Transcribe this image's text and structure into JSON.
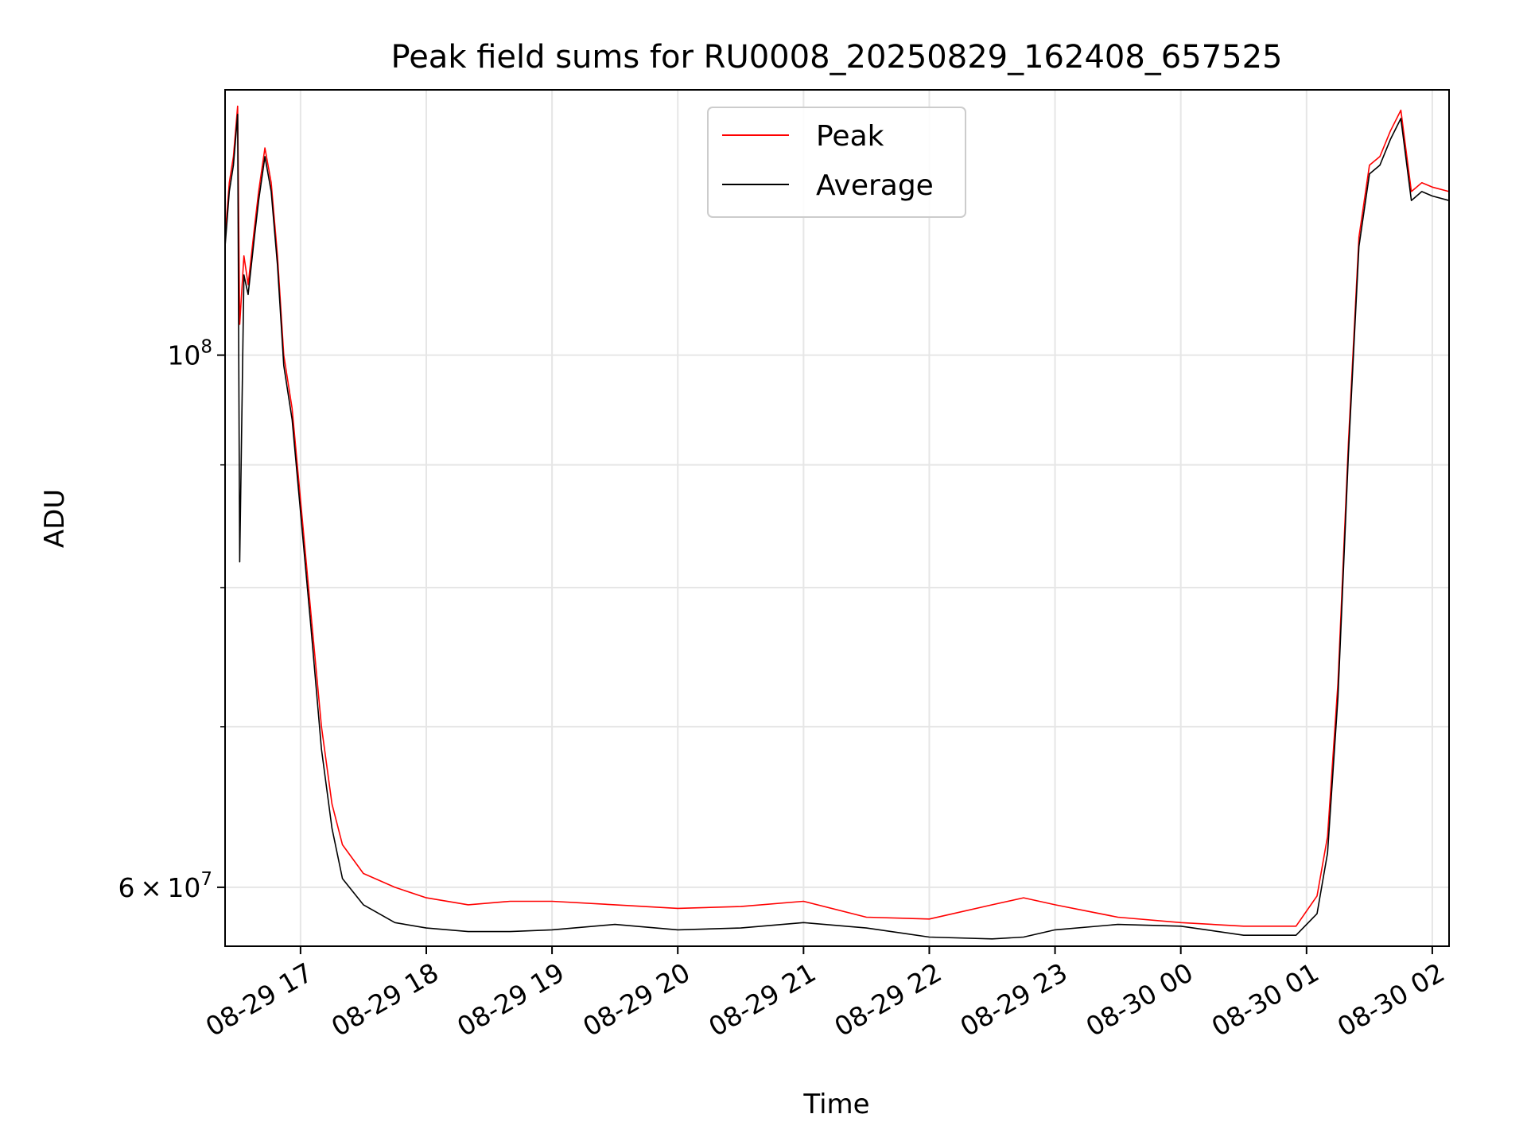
{
  "chart_data": {
    "type": "line",
    "title": "Peak field sums for RU0008_20250829_162408_657525",
    "xlabel": "Time",
    "ylabel": "ADU",
    "yscale": "log",
    "grid": true,
    "legend_position": "upper center",
    "xlim": [
      "2025-08-29 16:24",
      "2025-08-30 02:08"
    ],
    "ylim": [
      56700000,
      129000000
    ],
    "x_ticks": [
      "08-29 17",
      "08-29 18",
      "08-29 19",
      "08-29 20",
      "08-29 21",
      "08-29 22",
      "08-29 23",
      "08-30 00",
      "08-30 01",
      "08-30 02"
    ],
    "y_tick_labels": [
      {
        "value": 100000000,
        "mantissa": "",
        "base": "10",
        "exp": "8"
      },
      {
        "value": 60000000,
        "mantissa": "6 × ",
        "base": "10",
        "exp": "7"
      }
    ],
    "y_minor_ticks": [
      70000000,
      80000000,
      90000000
    ],
    "series": [
      {
        "name": "Peak",
        "color": "#ff0000",
        "points": [
          [
            "2025-08-29 16:24",
            112000000
          ],
          [
            "2025-08-29 16:26",
            118000000
          ],
          [
            "2025-08-29 16:28",
            121000000
          ],
          [
            "2025-08-29 16:30",
            127000000
          ],
          [
            "2025-08-29 16:31",
            103000000
          ],
          [
            "2025-08-29 16:33",
            110000000
          ],
          [
            "2025-08-29 16:35",
            107000000
          ],
          [
            "2025-08-29 16:38",
            113000000
          ],
          [
            "2025-08-29 16:40",
            117000000
          ],
          [
            "2025-08-29 16:43",
            122000000
          ],
          [
            "2025-08-29 16:46",
            118000000
          ],
          [
            "2025-08-29 16:49",
            110000000
          ],
          [
            "2025-08-29 16:52",
            100000000
          ],
          [
            "2025-08-29 16:56",
            95000000
          ],
          [
            "2025-08-29 17:00",
            87000000
          ],
          [
            "2025-08-29 17:05",
            78000000
          ],
          [
            "2025-08-29 17:10",
            70000000
          ],
          [
            "2025-08-29 17:15",
            65000000
          ],
          [
            "2025-08-29 17:20",
            62500000
          ],
          [
            "2025-08-29 17:30",
            60800000
          ],
          [
            "2025-08-29 17:45",
            60000000
          ],
          [
            "2025-08-29 18:00",
            59400000
          ],
          [
            "2025-08-29 18:20",
            59000000
          ],
          [
            "2025-08-29 18:40",
            59200000
          ],
          [
            "2025-08-29 19:00",
            59200000
          ],
          [
            "2025-08-29 19:30",
            59000000
          ],
          [
            "2025-08-29 20:00",
            58800000
          ],
          [
            "2025-08-29 20:30",
            58900000
          ],
          [
            "2025-08-29 21:00",
            59200000
          ],
          [
            "2025-08-29 21:30",
            58300000
          ],
          [
            "2025-08-29 22:00",
            58200000
          ],
          [
            "2025-08-29 22:30",
            59000000
          ],
          [
            "2025-08-29 22:45",
            59400000
          ],
          [
            "2025-08-29 23:00",
            59000000
          ],
          [
            "2025-08-29 23:30",
            58300000
          ],
          [
            "2025-08-30 00:00",
            58000000
          ],
          [
            "2025-08-30 00:30",
            57800000
          ],
          [
            "2025-08-30 00:55",
            57800000
          ],
          [
            "2025-08-30 01:05",
            59500000
          ],
          [
            "2025-08-30 01:10",
            63000000
          ],
          [
            "2025-08-30 01:15",
            73000000
          ],
          [
            "2025-08-30 01:20",
            92000000
          ],
          [
            "2025-08-30 01:25",
            112000000
          ],
          [
            "2025-08-30 01:30",
            120000000
          ],
          [
            "2025-08-30 01:35",
            121000000
          ],
          [
            "2025-08-30 01:40",
            124000000
          ],
          [
            "2025-08-30 01:45",
            126500000
          ],
          [
            "2025-08-30 01:50",
            117000000
          ],
          [
            "2025-08-30 01:55",
            118000000
          ],
          [
            "2025-08-30 02:00",
            117500000
          ],
          [
            "2025-08-30 02:08",
            117000000
          ]
        ]
      },
      {
        "name": "Average",
        "color": "#000000",
        "points": [
          [
            "2025-08-29 16:24",
            111000000
          ],
          [
            "2025-08-29 16:26",
            117000000
          ],
          [
            "2025-08-29 16:28",
            120000000
          ],
          [
            "2025-08-29 16:30",
            126000000
          ],
          [
            "2025-08-29 16:31",
            82000000
          ],
          [
            "2025-08-29 16:33",
            108000000
          ],
          [
            "2025-08-29 16:35",
            106000000
          ],
          [
            "2025-08-29 16:38",
            112000000
          ],
          [
            "2025-08-29 16:40",
            116000000
          ],
          [
            "2025-08-29 16:43",
            121000000
          ],
          [
            "2025-08-29 16:46",
            117000000
          ],
          [
            "2025-08-29 16:49",
            109000000
          ],
          [
            "2025-08-29 16:52",
            99000000
          ],
          [
            "2025-08-29 16:56",
            94000000
          ],
          [
            "2025-08-29 17:00",
            86000000
          ],
          [
            "2025-08-29 17:05",
            77000000
          ],
          [
            "2025-08-29 17:10",
            68500000
          ],
          [
            "2025-08-29 17:15",
            63500000
          ],
          [
            "2025-08-29 17:20",
            60500000
          ],
          [
            "2025-08-29 17:30",
            59000000
          ],
          [
            "2025-08-29 17:45",
            58000000
          ],
          [
            "2025-08-29 18:00",
            57700000
          ],
          [
            "2025-08-29 18:20",
            57500000
          ],
          [
            "2025-08-29 18:40",
            57500000
          ],
          [
            "2025-08-29 19:00",
            57600000
          ],
          [
            "2025-08-29 19:30",
            57900000
          ],
          [
            "2025-08-29 20:00",
            57600000
          ],
          [
            "2025-08-29 20:30",
            57700000
          ],
          [
            "2025-08-29 21:00",
            58000000
          ],
          [
            "2025-08-29 21:30",
            57700000
          ],
          [
            "2025-08-29 22:00",
            57200000
          ],
          [
            "2025-08-29 22:30",
            57100000
          ],
          [
            "2025-08-29 22:45",
            57200000
          ],
          [
            "2025-08-29 23:00",
            57600000
          ],
          [
            "2025-08-29 23:30",
            57900000
          ],
          [
            "2025-08-30 00:00",
            57800000
          ],
          [
            "2025-08-30 00:30",
            57300000
          ],
          [
            "2025-08-30 00:55",
            57300000
          ],
          [
            "2025-08-30 01:05",
            58500000
          ],
          [
            "2025-08-30 01:10",
            62000000
          ],
          [
            "2025-08-30 01:15",
            72000000
          ],
          [
            "2025-08-30 01:20",
            91000000
          ],
          [
            "2025-08-30 01:25",
            111000000
          ],
          [
            "2025-08-30 01:30",
            119000000
          ],
          [
            "2025-08-30 01:35",
            120000000
          ],
          [
            "2025-08-30 01:40",
            123000000
          ],
          [
            "2025-08-30 01:45",
            125500000
          ],
          [
            "2025-08-30 01:50",
            116000000
          ],
          [
            "2025-08-30 01:55",
            117000000
          ],
          [
            "2025-08-30 02:00",
            116500000
          ],
          [
            "2025-08-30 02:08",
            116000000
          ]
        ]
      }
    ]
  }
}
